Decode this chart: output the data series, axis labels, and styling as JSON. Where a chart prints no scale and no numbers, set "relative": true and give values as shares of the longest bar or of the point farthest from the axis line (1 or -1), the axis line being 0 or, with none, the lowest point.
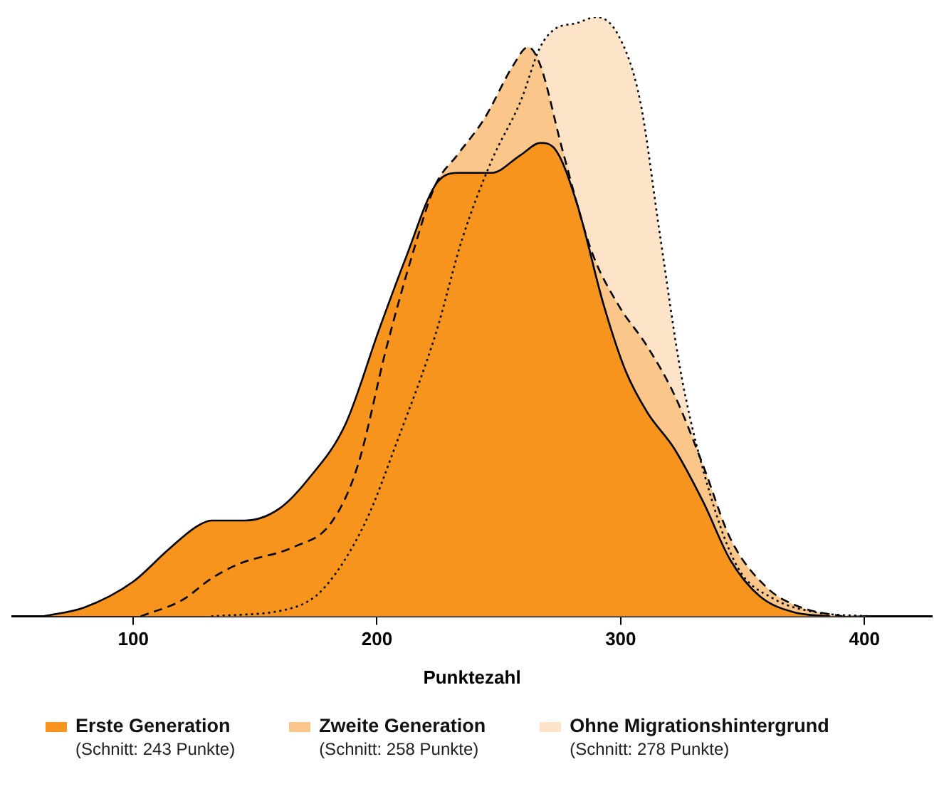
{
  "chart_data": {
    "type": "area",
    "relative": true,
    "xlabel": "Punktezahl",
    "xlim": [
      50,
      428
    ],
    "xticks": [
      100,
      200,
      300,
      400
    ],
    "grid": false,
    "legend": "bottom",
    "annotations": [
      "(Schnitt: 243 Punkte)",
      "(Schnitt: 258 Punkte)",
      "(Schnitt: 278 Punkte)"
    ],
    "series": [
      {
        "name": "Erste Generation",
        "color": "#f7941d",
        "line_style": "solid",
        "x": [
          63,
          80,
          100,
          114,
          126,
          132,
          146,
          160,
          172,
          187,
          201,
          212,
          224,
          233,
          247,
          259,
          267,
          273,
          282,
          293,
          302,
          311,
          322,
          334,
          345,
          357,
          371,
          386
        ],
        "values": [
          0,
          0.015,
          0.058,
          0.11,
          0.15,
          0.16,
          0.16,
          0.18,
          0.23,
          0.32,
          0.48,
          0.6,
          0.72,
          0.74,
          0.74,
          0.77,
          0.79,
          0.78,
          0.69,
          0.52,
          0.41,
          0.34,
          0.28,
          0.19,
          0.094,
          0.034,
          0.007,
          0
        ]
      },
      {
        "name": "Zweite Generation",
        "color": "#fbc68a",
        "line_style": "dashed",
        "x": [
          103,
          120,
          132,
          143,
          166,
          181,
          192,
          204,
          215,
          224,
          233,
          244,
          256,
          262,
          267,
          276,
          288,
          299,
          311,
          322,
          334,
          345,
          360,
          374,
          391
        ],
        "values": [
          0,
          0.027,
          0.063,
          0.087,
          0.116,
          0.155,
          0.25,
          0.45,
          0.61,
          0.72,
          0.77,
          0.83,
          0.92,
          0.95,
          0.92,
          0.78,
          0.61,
          0.52,
          0.45,
          0.37,
          0.25,
          0.13,
          0.048,
          0.015,
          0
        ]
      },
      {
        "name": "Ohne Migrationshintergrund",
        "color": "#fde3c8",
        "line_style": "dotted",
        "x": [
          132,
          166,
          178,
          195,
          209,
          224,
          235,
          247,
          259,
          267,
          273,
          282,
          290,
          299,
          308,
          316,
          325,
          337,
          348,
          363,
          380,
          403
        ],
        "values": [
          0,
          0.015,
          0.046,
          0.155,
          0.3,
          0.47,
          0.63,
          0.76,
          0.86,
          0.95,
          0.98,
          0.99,
          1,
          0.97,
          0.86,
          0.64,
          0.4,
          0.2,
          0.082,
          0.029,
          0.007,
          0
        ]
      }
    ]
  }
}
